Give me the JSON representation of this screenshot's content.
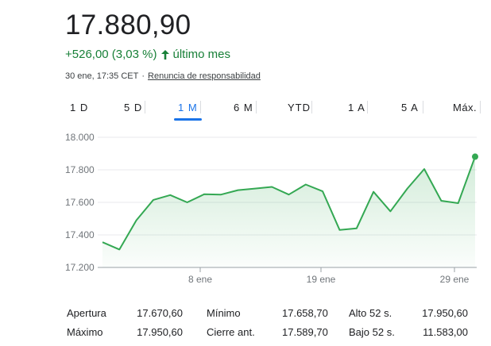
{
  "quote": {
    "price": "17.880,90",
    "change": "+526,00 (3,03 %)",
    "period": "último mes",
    "timestamp": "30 ene, 17:35 CET",
    "separator": "·",
    "disclaimer": "Renuncia de responsabilidad"
  },
  "colors": {
    "positive": "#188038",
    "accent": "#1a73e8",
    "line": "#34a853"
  },
  "icons": {
    "change_direction": "arrow-up-icon"
  },
  "tabs": [
    {
      "label": "1 D"
    },
    {
      "label": "5 D"
    },
    {
      "label": "1 M",
      "active": true
    },
    {
      "label": "6 M"
    },
    {
      "label": "YTD"
    },
    {
      "label": "1 A"
    },
    {
      "label": "5 A"
    },
    {
      "label": "Máx."
    }
  ],
  "chart_data": {
    "type": "area",
    "y_tick_labels": [
      "18.000",
      "17.800",
      "17.600",
      "17.400",
      "17.200"
    ],
    "y_ticks": [
      18000,
      17800,
      17600,
      17400,
      17200
    ],
    "x_tick_labels": [
      "8 ene",
      "19 ene",
      "29 ene"
    ],
    "ylim": [
      17200,
      18000
    ],
    "grid": true,
    "series": [
      {
        "values": [
          17355,
          17310,
          17490,
          17615,
          17645,
          17600,
          17650,
          17648,
          17675,
          17685,
          17695,
          17648,
          17710,
          17668,
          17430,
          17440,
          17665,
          17545,
          17685,
          17805,
          17610,
          17595,
          17880.9
        ]
      }
    ]
  },
  "stats": [
    {
      "label": "Apertura",
      "value": "17.670,60",
      "label2": "Mínimo",
      "value2": "17.658,70",
      "label3": "Alto 52 s.",
      "value3": "17.950,60"
    },
    {
      "label": "Máximo",
      "value": "17.950,60",
      "label2": "Cierre ant.",
      "value2": "17.589,70",
      "label3": "Bajo 52 s.",
      "value3": "11.583,00"
    }
  ]
}
